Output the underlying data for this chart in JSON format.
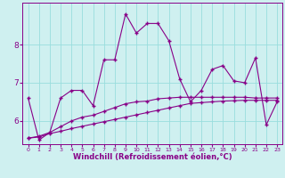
{
  "xlabel": "Windchill (Refroidissement éolien,°C)",
  "background_color": "#cff0f0",
  "line_color": "#880088",
  "grid_color": "#99dddd",
  "x_hours": [
    0,
    1,
    2,
    3,
    4,
    5,
    6,
    7,
    8,
    9,
    10,
    11,
    12,
    13,
    14,
    15,
    16,
    17,
    18,
    19,
    20,
    21,
    22,
    23
  ],
  "series1": [
    6.6,
    5.5,
    5.7,
    6.6,
    6.8,
    6.8,
    6.4,
    7.6,
    7.6,
    8.8,
    8.3,
    8.55,
    8.55,
    8.1,
    7.1,
    6.5,
    6.8,
    7.35,
    7.45,
    7.05,
    7.0,
    7.65,
    5.9,
    6.5
  ],
  "series2": [
    5.55,
    5.6,
    5.7,
    5.85,
    6.0,
    6.1,
    6.15,
    6.25,
    6.35,
    6.45,
    6.5,
    6.52,
    6.58,
    6.6,
    6.62,
    6.62,
    6.62,
    6.62,
    6.62,
    6.62,
    6.62,
    6.6,
    6.6,
    6.6
  ],
  "series3": [
    5.55,
    5.58,
    5.67,
    5.73,
    5.8,
    5.86,
    5.92,
    5.98,
    6.04,
    6.1,
    6.16,
    6.22,
    6.28,
    6.34,
    6.4,
    6.46,
    6.48,
    6.5,
    6.52,
    6.53,
    6.54,
    6.54,
    6.54,
    6.54
  ],
  "ylim": [
    5.4,
    9.1
  ],
  "yticks": [
    6,
    7,
    8
  ],
  "xlim": [
    -0.5,
    23.5
  ]
}
